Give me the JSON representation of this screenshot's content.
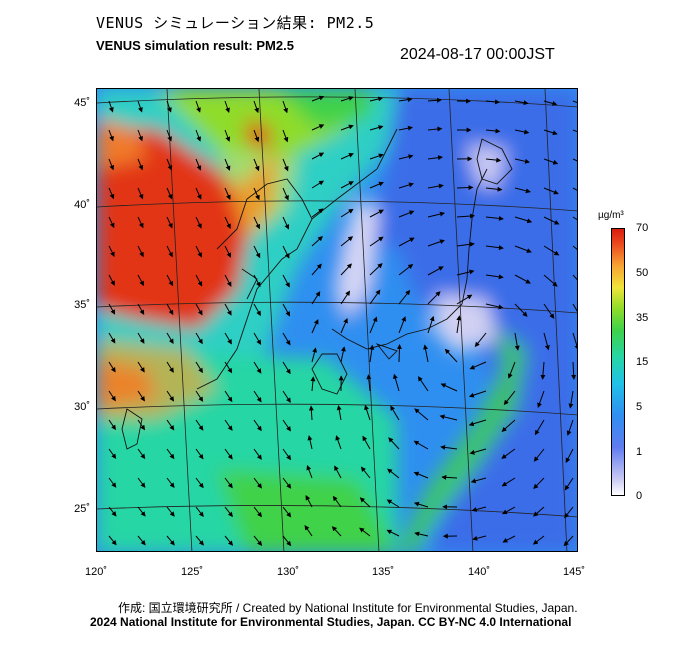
{
  "title_jp": "VENUS シミュレーション結果: PM2.5",
  "title_en": "VENUS simulation result: PM2.5",
  "timestamp": "2024-08-17 00:00JST",
  "latitude_labels": [
    "45˚",
    "40˚",
    "35˚",
    "30˚",
    "25˚"
  ],
  "longitude_labels": [
    "120˚",
    "125˚",
    "130˚",
    "135˚",
    "140˚",
    "145˚"
  ],
  "colorbar": {
    "unit": "µg/m³",
    "ticks": [
      "70",
      "50",
      "35",
      "15",
      "5",
      "1",
      "0"
    ],
    "colors": [
      "#ffffff",
      "#c9c9f2",
      "#5f7cf0",
      "#2f8ff0",
      "#21c1e8",
      "#27d6a4",
      "#3fd24a",
      "#8fdc2a",
      "#f0e43a",
      "#f7a534",
      "#ec4d1f",
      "#d81e10"
    ]
  },
  "credits": {
    "line1": "作成: 国立環境研究所 / Created by National Institute for Environmental Studies, Japan.",
    "line2": "2024 National Institute for Environmental Studies, Japan. CC BY-NC 4.0 International"
  }
}
